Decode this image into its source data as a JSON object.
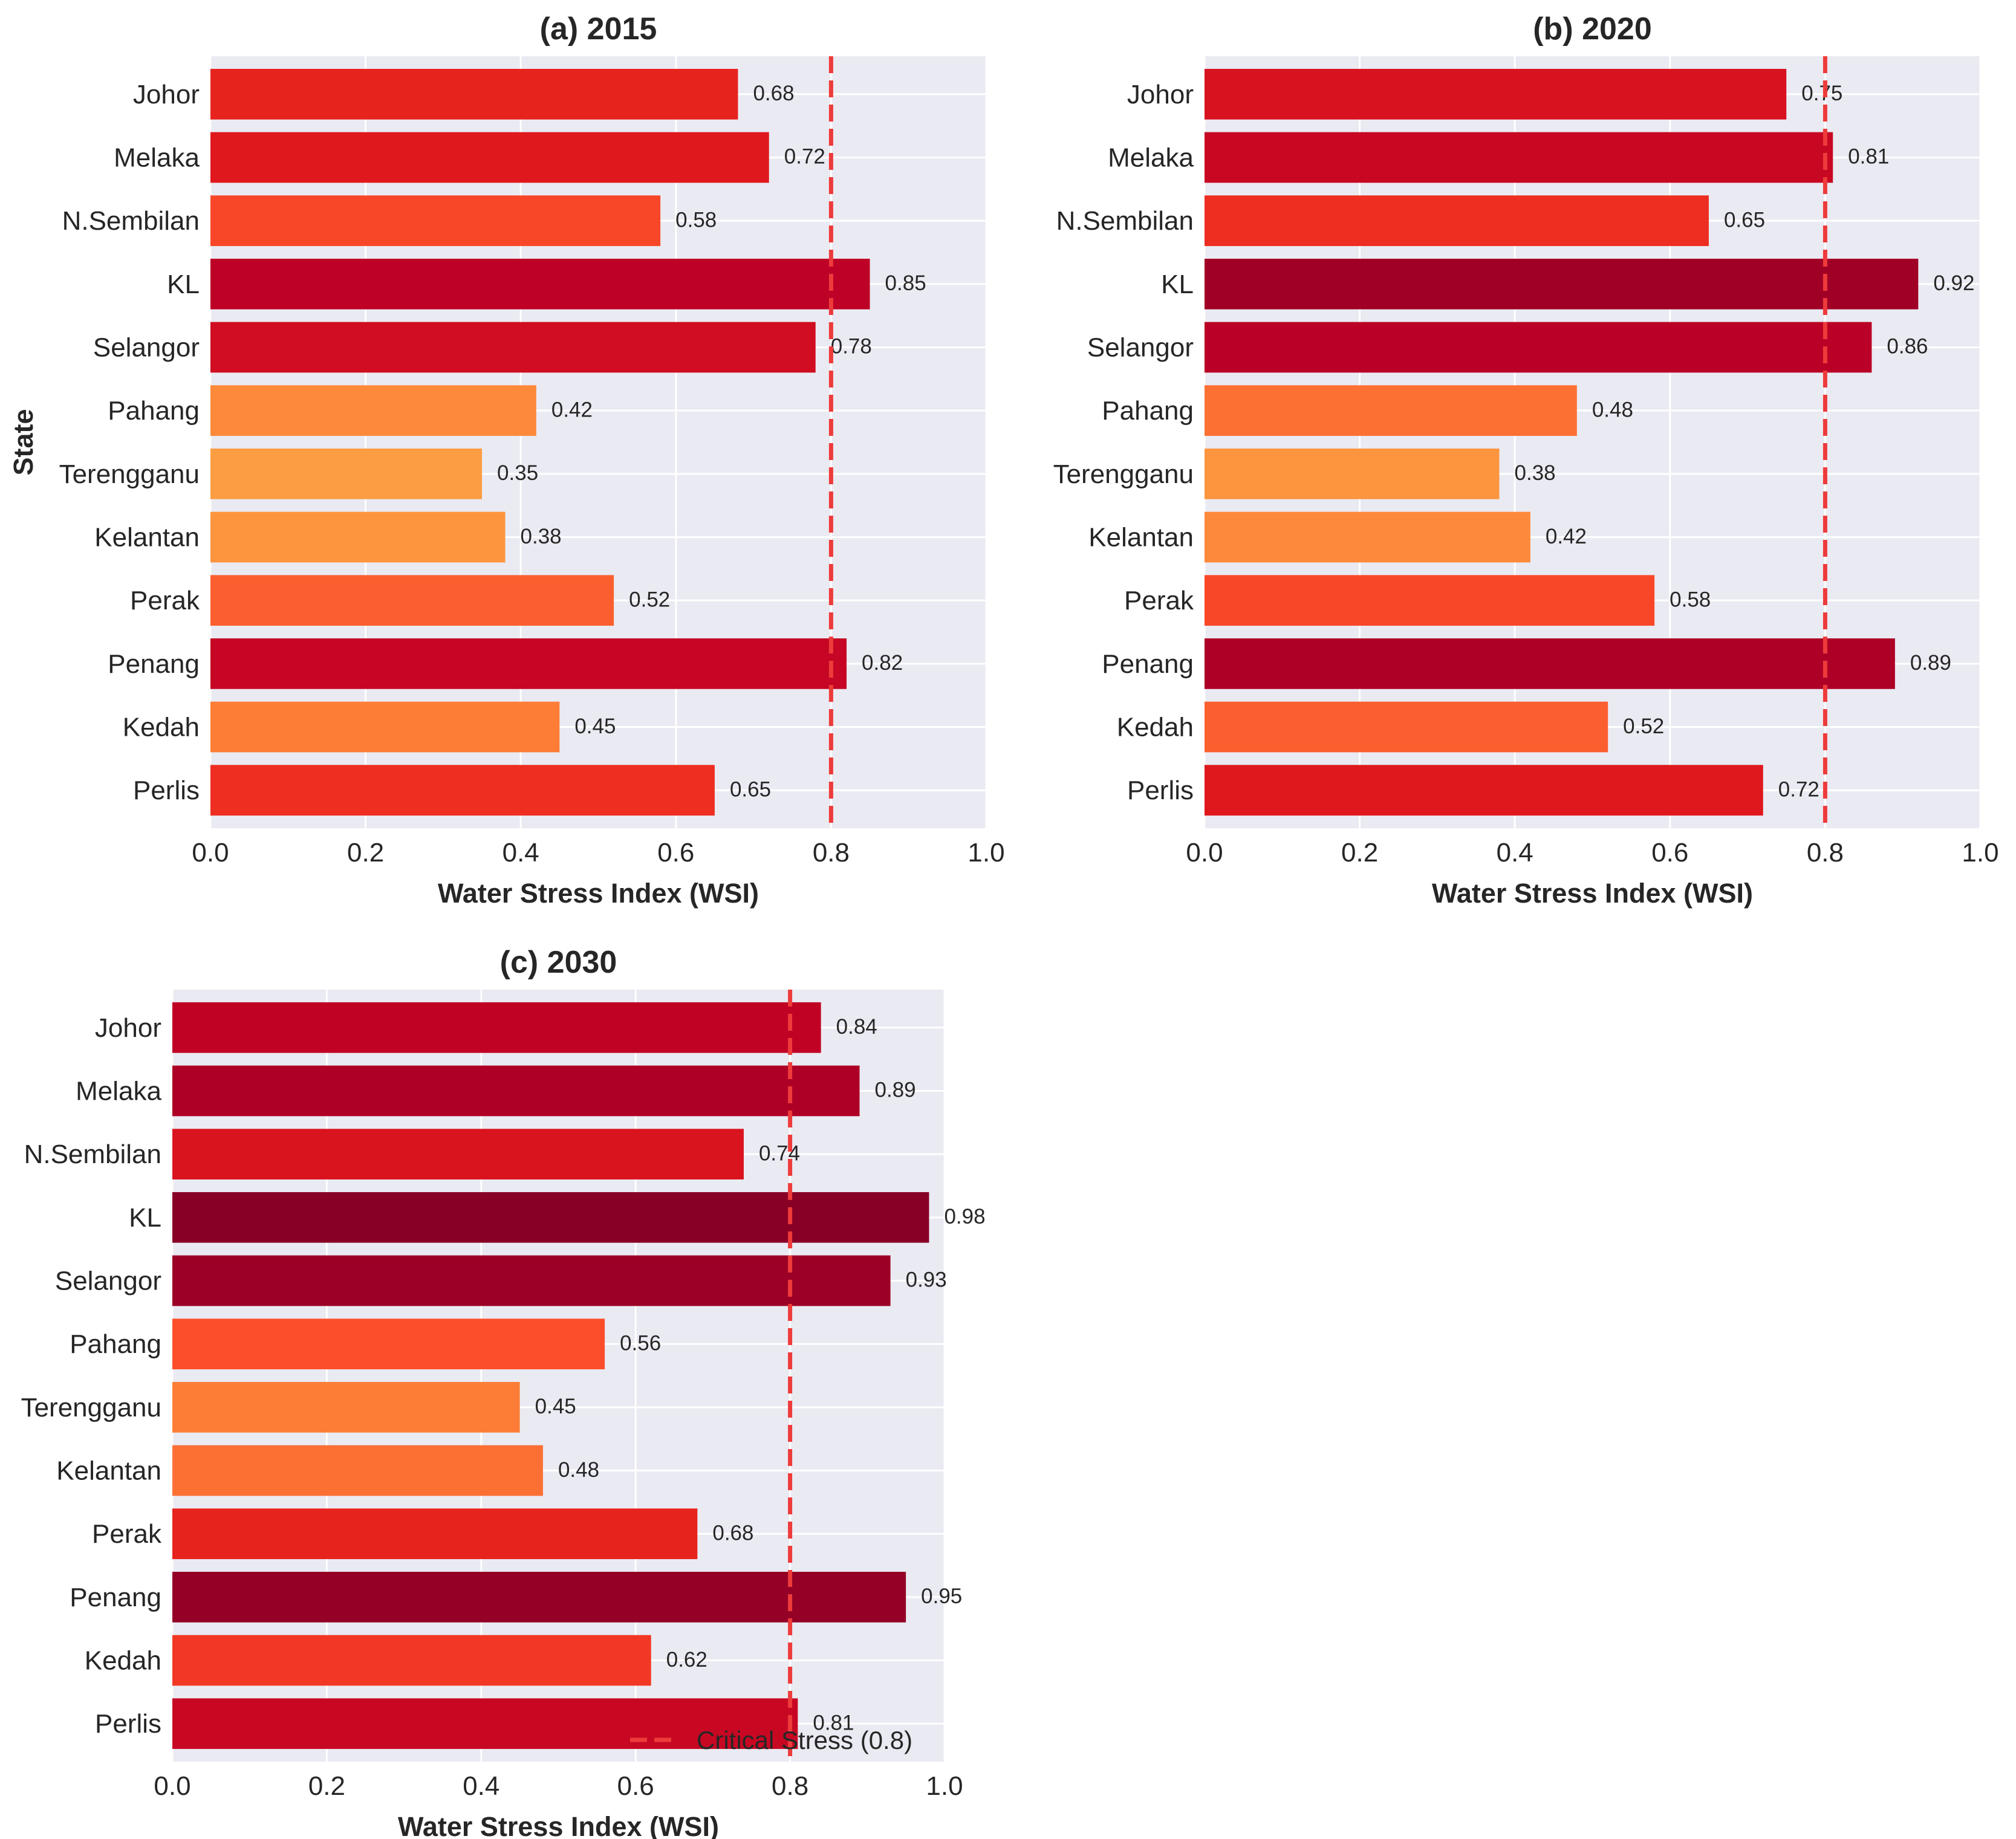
{
  "colors": {
    "plot_bg": "#eaeaf2",
    "grid": "#ffffff",
    "critical_line": "#ee3b3b",
    "colormap": "YlOrRd"
  },
  "chart_data": [
    {
      "type": "bar",
      "orientation": "horizontal",
      "title": "(a) 2015",
      "xlabel": "Water Stress Index (WSI)",
      "ylabel": "State",
      "xlim": [
        0,
        1
      ],
      "xticks": [
        "0.0",
        "0.2",
        "0.4",
        "0.6",
        "0.8",
        "1.0"
      ],
      "categories": [
        "Johor",
        "Melaka",
        "N.Sembilan",
        "KL",
        "Selangor",
        "Pahang",
        "Terengganu",
        "Kelantan",
        "Perak",
        "Penang",
        "Kedah",
        "Perlis"
      ],
      "values": [
        0.68,
        0.72,
        0.58,
        0.85,
        0.78,
        0.42,
        0.35,
        0.38,
        0.52,
        0.82,
        0.45,
        0.65
      ],
      "value_labels": [
        "0.68",
        "0.72",
        "0.58",
        "0.85",
        "0.78",
        "0.42",
        "0.35",
        "0.38",
        "0.52",
        "0.82",
        "0.45",
        "0.65"
      ],
      "reference_line": {
        "x": 0.8,
        "style": "dashed"
      },
      "grid": true
    },
    {
      "type": "bar",
      "orientation": "horizontal",
      "title": "(b) 2020",
      "xlabel": "Water Stress Index (WSI)",
      "ylabel": "",
      "xlim": [
        0,
        1
      ],
      "xticks": [
        "0.0",
        "0.2",
        "0.4",
        "0.6",
        "0.8",
        "1.0"
      ],
      "categories": [
        "Johor",
        "Melaka",
        "N.Sembilan",
        "KL",
        "Selangor",
        "Pahang",
        "Terengganu",
        "Kelantan",
        "Perak",
        "Penang",
        "Kedah",
        "Perlis"
      ],
      "values": [
        0.75,
        0.81,
        0.65,
        0.92,
        0.86,
        0.48,
        0.38,
        0.42,
        0.58,
        0.89,
        0.52,
        0.72
      ],
      "value_labels": [
        "0.75",
        "0.81",
        "0.65",
        "0.92",
        "0.86",
        "0.48",
        "0.38",
        "0.42",
        "0.58",
        "0.89",
        "0.52",
        "0.72"
      ],
      "reference_line": {
        "x": 0.8,
        "style": "dashed"
      },
      "grid": true
    },
    {
      "type": "bar",
      "orientation": "horizontal",
      "title": "(c) 2030",
      "xlabel": "Water Stress Index (WSI)",
      "ylabel": "",
      "xlim": [
        0,
        1
      ],
      "xticks": [
        "0.0",
        "0.2",
        "0.4",
        "0.6",
        "0.8",
        "1.0"
      ],
      "categories": [
        "Johor",
        "Melaka",
        "N.Sembilan",
        "KL",
        "Selangor",
        "Pahang",
        "Terengganu",
        "Kelantan",
        "Perak",
        "Penang",
        "Kedah",
        "Perlis"
      ],
      "values": [
        0.84,
        0.89,
        0.74,
        0.98,
        0.93,
        0.56,
        0.45,
        0.48,
        0.68,
        0.95,
        0.62,
        0.81
      ],
      "value_labels": [
        "0.84",
        "0.89",
        "0.74",
        "0.98",
        "0.93",
        "0.56",
        "0.45",
        "0.48",
        "0.68",
        "0.95",
        "0.62",
        "0.81"
      ],
      "reference_line": {
        "x": 0.8,
        "style": "dashed",
        "legend_label": "Critical Stress (0.8)"
      },
      "legend": {
        "placement": "lower-right",
        "entries": [
          "Critical Stress (0.8)"
        ]
      },
      "grid": true
    }
  ]
}
